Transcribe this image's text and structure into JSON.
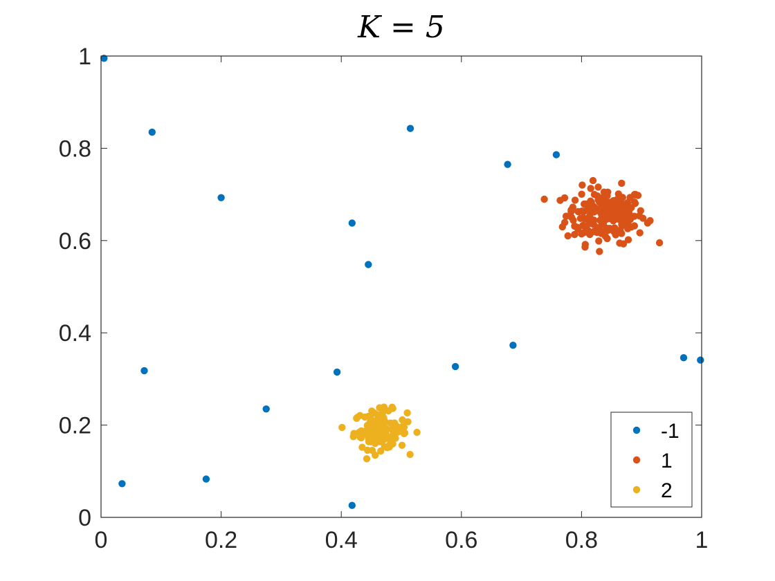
{
  "chart_data": {
    "type": "scatter",
    "title": "K = 5",
    "xlabel": "",
    "ylabel": "",
    "xlim": [
      0,
      1
    ],
    "ylim": [
      0,
      1
    ],
    "xticks": [
      "0",
      "0.2",
      "0.4",
      "0.6",
      "0.8",
      "1"
    ],
    "yticks": [
      "0",
      "0.2",
      "0.4",
      "0.6",
      "0.8",
      "1"
    ],
    "xtick_values": [
      0,
      0.2,
      0.4,
      0.6,
      0.8,
      1
    ],
    "ytick_values": [
      0,
      0.2,
      0.4,
      0.6,
      0.8,
      1
    ],
    "grid": false,
    "legend_position": "bottom-right",
    "series": [
      {
        "name": "-1",
        "color": "#0072BD",
        "points": [
          [
            0.005,
            0.995
          ],
          [
            0.085,
            0.835
          ],
          [
            0.2,
            0.693
          ],
          [
            0.515,
            0.843
          ],
          [
            0.418,
            0.638
          ],
          [
            0.445,
            0.548
          ],
          [
            0.677,
            0.765
          ],
          [
            0.758,
            0.786
          ],
          [
            0.072,
            0.318
          ],
          [
            0.393,
            0.315
          ],
          [
            0.275,
            0.235
          ],
          [
            0.59,
            0.327
          ],
          [
            0.686,
            0.373
          ],
          [
            0.97,
            0.346
          ],
          [
            0.998,
            0.341
          ],
          [
            0.035,
            0.073
          ],
          [
            0.175,
            0.083
          ],
          [
            0.418,
            0.026
          ]
        ]
      },
      {
        "name": "1",
        "color": "#D95319",
        "cluster": {
          "center": [
            0.84,
            0.655
          ],
          "spread": [
            0.06,
            0.05
          ],
          "count": 200
        }
      },
      {
        "name": "2",
        "color": "#EDB120",
        "cluster": {
          "center": [
            0.465,
            0.19
          ],
          "spread": [
            0.04,
            0.035
          ],
          "count": 120
        }
      }
    ]
  }
}
